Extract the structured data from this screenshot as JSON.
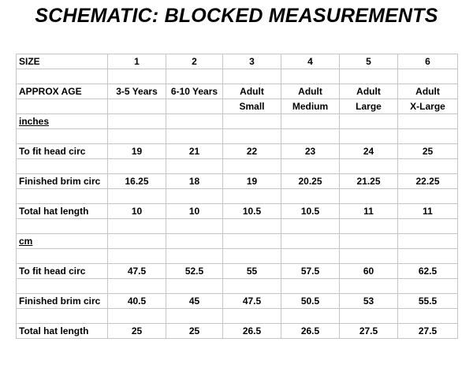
{
  "title": "SCHEMATIC: BLOCKED MEASUREMENTS",
  "table": {
    "size_row": {
      "label": "SIZE",
      "values": [
        "1",
        "2",
        "3",
        "4",
        "5",
        "6"
      ]
    },
    "age_row": {
      "label": "APPROX AGE",
      "values": [
        "3-5 Years",
        "6-10 Years",
        "Adult",
        "Adult",
        "Adult",
        "Adult"
      ]
    },
    "age_row_2": {
      "values": [
        "",
        "",
        "Small",
        "Medium",
        "Large",
        "X-Large"
      ]
    },
    "inches": {
      "label": "inches",
      "rows": [
        {
          "label": "To fit head circ",
          "values": [
            "19",
            "21",
            "22",
            "23",
            "24",
            "25"
          ]
        },
        {
          "label": "Finished brim circ",
          "values": [
            "16.25",
            "18",
            "19",
            "20.25",
            "21.25",
            "22.25"
          ]
        },
        {
          "label": "Total hat length",
          "values": [
            "10",
            "10",
            "10.5",
            "10.5",
            "11",
            "11"
          ]
        }
      ]
    },
    "cm": {
      "label": "cm",
      "rows": [
        {
          "label": "To fit head circ",
          "values": [
            "47.5",
            "52.5",
            "55",
            "57.5",
            "60",
            "62.5"
          ]
        },
        {
          "label": "Finished brim circ",
          "values": [
            "40.5",
            "45",
            "47.5",
            "50.5",
            "53",
            "55.5"
          ]
        },
        {
          "label": "Total hat length",
          "values": [
            "25",
            "25",
            "26.5",
            "26.5",
            "27.5",
            "27.5"
          ]
        }
      ]
    }
  }
}
